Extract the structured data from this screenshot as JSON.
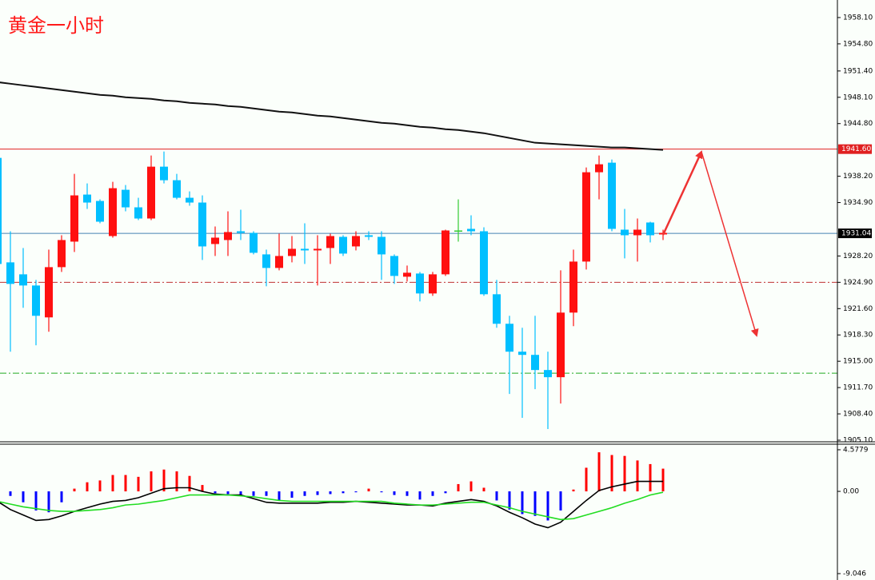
{
  "chart_data": [
    {
      "type": "candlestick",
      "title": "黄金一小时",
      "title_color": "#ff1a1a",
      "categories": [
        null,
        null,
        null,
        null,
        null,
        null,
        null,
        null,
        null,
        null,
        null,
        null,
        null,
        null,
        null,
        null,
        null,
        null,
        null,
        null,
        null,
        null,
        null,
        null,
        null,
        null,
        null,
        null,
        null,
        null,
        null,
        null,
        null,
        null,
        null,
        null,
        null,
        null,
        null,
        null,
        null,
        null,
        null,
        null,
        null,
        null,
        null,
        null,
        null,
        null,
        null,
        null,
        null
      ],
      "open": [
        1940.5,
        1927.4,
        1925.9,
        1924.5,
        1920.5,
        1926.8,
        1930.0,
        1935.9,
        1935.1,
        1930.7,
        1936.5,
        1934.3,
        1932.9,
        1939.4,
        1937.7,
        1935.5,
        1934.9,
        1929.7,
        1930.2,
        1931.3,
        1931.1,
        1928.4,
        1926.7,
        1928.2,
        1929.1,
        1928.9,
        1929.2,
        1930.6,
        1929.4,
        1930.8,
        1930.6,
        1928.2,
        1925.6,
        1926.0,
        1923.5,
        1925.9,
        1931.4,
        1931.6,
        1931.3,
        1923.4,
        1919.7,
        1916.2,
        1915.8,
        1913.9,
        1913.0,
        1921.1,
        1927.5,
        1938.7,
        1939.9,
        1931.5,
        1930.8,
        1932.4,
        1930.9
      ],
      "high": [
        1940.5,
        1931.3,
        1929.2,
        1925.2,
        1929.0,
        1930.8,
        1938.5,
        1937.3,
        1935.3,
        1937.5,
        1937.1,
        1935.5,
        1940.8,
        1941.3,
        1938.5,
        1936.3,
        1935.8,
        1931.9,
        1933.8,
        1934.0,
        1931.3,
        1929.0,
        1931.0,
        1930.7,
        1932.3,
        1930.8,
        1931.0,
        1930.8,
        1931.3,
        1931.3,
        1931.3,
        1928.4,
        1927.0,
        1926.2,
        1926.2,
        1931.5,
        1935.3,
        1933.3,
        1931.8,
        1925.2,
        1920.7,
        1919.2,
        1920.7,
        1916.2,
        1926.4,
        1929.0,
        1939.3,
        1940.8,
        1940.3,
        1934.1,
        1932.9,
        1932.5,
        1931.5
      ],
      "low": [
        1925.7,
        1916.2,
        1921.7,
        1917.0,
        1918.7,
        1926.2,
        1928.7,
        1934.1,
        1932.3,
        1930.5,
        1933.8,
        1932.7,
        1932.7,
        1937.3,
        1935.3,
        1934.5,
        1927.7,
        1928.2,
        1928.2,
        1930.2,
        1928.4,
        1924.4,
        1926.4,
        1927.4,
        1927.2,
        1924.5,
        1927.2,
        1928.2,
        1928.9,
        1930.2,
        1925.2,
        1924.7,
        1925.0,
        1922.5,
        1923.2,
        1925.7,
        1930.0,
        1930.8,
        1923.2,
        1919.2,
        1910.9,
        1907.9,
        1911.5,
        1906.5,
        1909.7,
        1919.4,
        1926.5,
        1935.3,
        1931.3,
        1927.9,
        1927.5,
        1929.9,
        1930.2
      ],
      "close": [
        1927.2,
        1924.7,
        1924.5,
        1920.7,
        1926.8,
        1930.2,
        1935.8,
        1934.9,
        1932.5,
        1936.7,
        1934.3,
        1932.9,
        1939.4,
        1937.7,
        1935.5,
        1934.9,
        1929.4,
        1930.5,
        1931.2,
        1931.1,
        1928.6,
        1926.7,
        1928.2,
        1929.1,
        1928.9,
        1929.1,
        1930.7,
        1928.5,
        1930.7,
        1930.6,
        1928.4,
        1925.7,
        1926.1,
        1923.5,
        1925.9,
        1931.4,
        1931.4,
        1931.3,
        1923.4,
        1919.7,
        1916.2,
        1915.8,
        1913.9,
        1913.0,
        1921.1,
        1927.5,
        1938.7,
        1939.7,
        1931.6,
        1930.8,
        1931.5,
        1930.8,
        1931.1
      ],
      "up_color": "#ff1010",
      "down_color": "#00bfff",
      "doji_color": "#33cc33",
      "ma": {
        "color": "#111111",
        "values": [
          1950.0,
          1949.8,
          1949.6,
          1949.4,
          1949.2,
          1949.0,
          1948.8,
          1948.6,
          1948.4,
          1948.3,
          1948.1,
          1948.0,
          1947.9,
          1947.7,
          1947.6,
          1947.4,
          1947.3,
          1947.2,
          1947.0,
          1946.9,
          1946.7,
          1946.5,
          1946.3,
          1946.2,
          1946.0,
          1945.8,
          1945.7,
          1945.5,
          1945.3,
          1945.1,
          1944.9,
          1944.8,
          1944.6,
          1944.4,
          1944.3,
          1944.1,
          1944.0,
          1943.8,
          1943.6,
          1943.3,
          1943.0,
          1942.7,
          1942.4,
          1942.3,
          1942.2,
          1942.1,
          1942.0,
          1941.9,
          1941.8,
          1941.8,
          1941.7,
          1941.6,
          1941.5
        ]
      },
      "hlines": [
        {
          "value": 1941.6,
          "label": "1941.60",
          "color": "#e02020",
          "label_bg": "#e02020",
          "style": "solid"
        },
        {
          "value": 1931.04,
          "label": "1931.04",
          "color": "#4682b4",
          "label_bg": "#000000",
          "style": "solid"
        },
        {
          "value": 1924.9,
          "color": "#c03030",
          "style": "dashdot"
        },
        {
          "value": 1913.5,
          "color": "#22aa22",
          "style": "dashdot"
        }
      ],
      "ylim": [
        1904.9,
        1960.3
      ],
      "yticks": [
        {
          "value": 1958.1,
          "label": "1958.10"
        },
        {
          "value": 1954.8,
          "label": "1954.80"
        },
        {
          "value": 1951.4,
          "label": "1951.40"
        },
        {
          "value": 1948.1,
          "label": "1948.10"
        },
        {
          "value": 1944.8,
          "label": "1944.80"
        },
        {
          "value": 1938.2,
          "label": "1938.20"
        },
        {
          "value": 1934.9,
          "label": "1934.90"
        },
        {
          "value": 1928.2,
          "label": "1928.20"
        },
        {
          "value": 1924.9,
          "label": "1924.90"
        },
        {
          "value": 1921.6,
          "label": "1921.60"
        },
        {
          "value": 1918.3,
          "label": "1918.30"
        },
        {
          "value": 1915.0,
          "label": "1915.00"
        },
        {
          "value": 1911.7,
          "label": "1911.70"
        },
        {
          "value": 1908.4,
          "label": "1908.40"
        },
        {
          "value": 1905.1,
          "label": "1905.10"
        }
      ]
    },
    {
      "type": "macd",
      "categories": [
        null,
        null,
        null,
        null,
        null,
        null,
        null,
        null,
        null,
        null,
        null,
        null,
        null,
        null,
        null,
        null,
        null,
        null,
        null,
        null,
        null,
        null,
        null,
        null,
        null,
        null,
        null,
        null,
        null,
        null,
        null,
        null,
        null,
        null,
        null,
        null,
        null,
        null,
        null,
        null,
        null,
        null,
        null,
        null,
        null,
        null,
        null,
        null,
        null,
        null,
        null,
        null,
        null
      ],
      "histogram": {
        "up_color": "#ff0000",
        "down_color": "#0000ff",
        "values": [
          null,
          -0.5,
          -1.2,
          -2.1,
          -2.3,
          -1.2,
          0.3,
          1.0,
          1.2,
          1.8,
          1.8,
          1.6,
          2.2,
          2.4,
          2.2,
          1.7,
          0.7,
          -0.2,
          -0.3,
          -0.4,
          -0.5,
          -0.5,
          -1.0,
          -0.7,
          -0.5,
          -0.4,
          -0.3,
          -0.2,
          -0.1,
          0.3,
          -0.1,
          -0.4,
          -0.5,
          -0.9,
          -0.5,
          -0.2,
          0.8,
          1.1,
          0.4,
          -1.0,
          -2.0,
          -2.5,
          -2.7,
          -3.2,
          -2.1,
          0.2,
          2.6,
          4.3,
          4.0,
          3.9,
          3.4,
          3.0,
          2.5
        ]
      },
      "series": [
        {
          "color": "#000000",
          "values": [
            -1.1,
            -2.0,
            -2.6,
            -3.2,
            -3.1,
            -2.7,
            -2.2,
            -1.8,
            -1.4,
            -1.1,
            -1.0,
            -0.7,
            -0.2,
            0.3,
            0.4,
            0.4,
            0.0,
            -0.3,
            -0.4,
            -0.4,
            -0.8,
            -1.2,
            -1.3,
            -1.3,
            -1.3,
            -1.3,
            -1.2,
            -1.2,
            -1.1,
            -1.2,
            -1.3,
            -1.4,
            -1.5,
            -1.5,
            -1.6,
            -1.3,
            -1.1,
            -0.9,
            -1.1,
            -1.6,
            -2.3,
            -2.9,
            -3.6,
            -4.0,
            -3.4,
            -2.2,
            -1.0,
            0.1,
            0.5,
            0.8,
            1.1,
            1.1,
            1.1
          ]
        },
        {
          "color": "#22dd22",
          "values": [
            -1.1,
            -1.4,
            -1.7,
            -1.9,
            -2.1,
            -2.2,
            -2.2,
            -2.1,
            -2.0,
            -1.8,
            -1.5,
            -1.4,
            -1.2,
            -1.0,
            -0.7,
            -0.4,
            -0.4,
            -0.4,
            -0.4,
            -0.5,
            -0.6,
            -0.8,
            -1.0,
            -1.1,
            -1.1,
            -1.1,
            -1.1,
            -1.1,
            -1.1,
            -1.1,
            -1.1,
            -1.3,
            -1.4,
            -1.5,
            -1.5,
            -1.4,
            -1.3,
            -1.2,
            -1.2,
            -1.5,
            -1.8,
            -2.2,
            -2.5,
            -2.8,
            -3.1,
            -3.0,
            -2.6,
            -2.2,
            -1.8,
            -1.3,
            -0.9,
            -0.4,
            -0.1
          ]
        }
      ],
      "ylim": [
        -9.75,
        5.19
      ],
      "yticks": [
        4.5779,
        {
          "value": 0,
          "label": "0.00"
        },
        -9.046
      ]
    }
  ]
}
